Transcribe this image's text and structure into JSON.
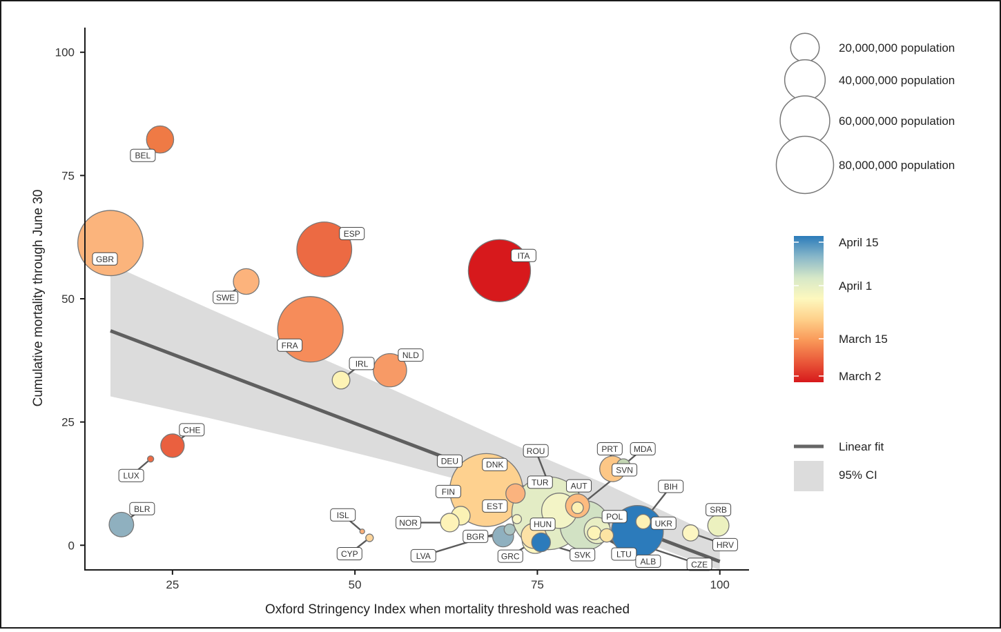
{
  "chart_data": {
    "type": "scatter",
    "xlabel": "Oxford Stringency Index when mortality threshold was reached",
    "ylabel": "Cumulative mortality through June 30",
    "xlim": [
      13,
      104
    ],
    "ylim": [
      -5,
      105
    ],
    "xticks": [
      25,
      50,
      75,
      100
    ],
    "yticks": [
      0,
      25,
      50,
      75,
      100
    ],
    "grid": false,
    "fit": {
      "name": "Linear fit",
      "x": [
        16.5,
        100
      ],
      "y": [
        43.5,
        -3.3
      ],
      "ci_name": "95% CI",
      "ci_x": [
        16.5,
        30,
        45,
        55,
        65,
        75,
        85,
        95,
        100
      ],
      "ci_lower": [
        30.2,
        25.8,
        20.6,
        16.9,
        13.0,
        8.6,
        3.4,
        -2.4,
        -5.0
      ],
      "ci_upper": [
        57.0,
        48.0,
        38.2,
        31.7,
        25.0,
        18.3,
        12.0,
        5.0,
        1.6
      ]
    },
    "size_legend": [
      {
        "label": "20,000,000 population",
        "population": 20000000
      },
      {
        "label": "40,000,000 population",
        "population": 40000000
      },
      {
        "label": "60,000,000 population",
        "population": 60000000
      },
      {
        "label": "80,000,000 population",
        "population": 80000000
      }
    ],
    "color_legend": {
      "ticks": [
        "April 15",
        "April 1",
        "March 15",
        "March 2"
      ],
      "stops": [
        "#2b7bba",
        "#89b7c9",
        "#d6e8c8",
        "#fdf8be",
        "#fed08a",
        "#f99858",
        "#ea5a3a",
        "#d7191c"
      ]
    },
    "points": [
      {
        "code": "BEL",
        "x": 23.3,
        "y": 82.3,
        "pop": 11500000,
        "color": "#ef7a45",
        "lx": -25,
        "ly": 23
      },
      {
        "code": "GBR",
        "x": 16.5,
        "y": 61.3,
        "pop": 66500000,
        "color": "#fbb47c",
        "lx": -8,
        "ly": 23
      },
      {
        "code": "ESP",
        "x": 45.8,
        "y": 60.0,
        "pop": 47000000,
        "color": "#ec6a43",
        "lx": 40,
        "ly": -23
      },
      {
        "code": "ITA",
        "x": 69.8,
        "y": 55.7,
        "pop": 60300000,
        "color": "#d7191c",
        "lx": 35,
        "ly": -22
      },
      {
        "code": "SWE",
        "x": 35.1,
        "y": 53.5,
        "pop": 10300000,
        "color": "#fcb37c",
        "lx": -30,
        "ly": 23
      },
      {
        "code": "FRA",
        "x": 43.9,
        "y": 43.8,
        "pop": 67000000,
        "color": "#f68c5a",
        "lx": -30,
        "ly": 23
      },
      {
        "code": "NLD",
        "x": 54.8,
        "y": 35.5,
        "pop": 17300000,
        "color": "#f79a66",
        "lx": 30,
        "ly": -22
      },
      {
        "code": "IRL",
        "x": 48.1,
        "y": 33.5,
        "pop": 4900000,
        "color": "#fdf3b5",
        "lx": 30,
        "ly": -24
      },
      {
        "code": "CHE",
        "x": 25.0,
        "y": 20.2,
        "pop": 8600000,
        "color": "#ea603f",
        "lx": 28,
        "ly": -23
      },
      {
        "code": "LUX",
        "x": 22.0,
        "y": 17.5,
        "pop": 600000,
        "color": "#ee6b44",
        "lx": -28,
        "ly": 24
      },
      {
        "code": "BLR",
        "x": 18.0,
        "y": 4.2,
        "pop": 9400000,
        "color": "#8fb0bf",
        "lx": 30,
        "ly": -23
      },
      {
        "code": "ISL",
        "x": 51.0,
        "y": 2.8,
        "pop": 360000,
        "color": "#fbb07a",
        "lx": -28,
        "ly": -24
      },
      {
        "code": "CYP",
        "x": 52.0,
        "y": 1.5,
        "pop": 900000,
        "color": "#fdd49a",
        "lx": -29,
        "ly": 23
      },
      {
        "code": "DEU",
        "x": 68.0,
        "y": 11.2,
        "pop": 83000000,
        "color": "#fed18f",
        "lx": -53,
        "ly": -42
      },
      {
        "code": "DNK",
        "x": 72.0,
        "y": 10.5,
        "pop": 5800000,
        "color": "#fbb37e",
        "lx": -30,
        "ly": -42
      },
      {
        "code": "ROU",
        "x": 78.0,
        "y": 7.0,
        "pop": 19400000,
        "color": "#f3f4c6",
        "lx": -34,
        "ly": -87
      },
      {
        "code": "PRT",
        "x": 85.3,
        "y": 15.5,
        "pop": 10300000,
        "color": "#fdc786",
        "lx": -4,
        "ly": -29
      },
      {
        "code": "MDA",
        "x": 86.8,
        "y": 16.2,
        "pop": 2700000,
        "color": "#c3d6b3",
        "lx": 28,
        "ly": -24
      },
      {
        "code": "FIN",
        "x": 64.5,
        "y": 6.0,
        "pop": 5500000,
        "color": "#fbf2b5",
        "lx": -18,
        "ly": -35
      },
      {
        "code": "EST",
        "x": 72.2,
        "y": 5.3,
        "pop": 1300000,
        "color": "#f6f4c4",
        "lx": -32,
        "ly": -19
      },
      {
        "code": "TUR",
        "x": 76.5,
        "y": 6.5,
        "pop": 83000000,
        "color": "#e3ecc5",
        "lx": -12,
        "ly": -45
      },
      {
        "code": "AUT",
        "x": 80.5,
        "y": 8.0,
        "pop": 8900000,
        "color": "#fdbb7f",
        "lx": 2,
        "ly": -29
      },
      {
        "code": "SVN",
        "x": 80.5,
        "y": 7.6,
        "pop": 2100000,
        "color": "#fdf1b4",
        "lx": 68,
        "ly": -55
      },
      {
        "code": "NOR",
        "x": 63.0,
        "y": 4.6,
        "pop": 5400000,
        "color": "#fef3b8",
        "lx": -60,
        "ly": 0
      },
      {
        "code": "POL",
        "x": 81.5,
        "y": 4.0,
        "pop": 38000000,
        "color": "#d2e2c4",
        "lx": 43,
        "ly": -13
      },
      {
        "code": "BIH",
        "x": 89.5,
        "y": 4.8,
        "pop": 3300000,
        "color": "#fdf1b5",
        "lx": 40,
        "ly": -51
      },
      {
        "code": "UKR",
        "x": 88.7,
        "y": 2.8,
        "pop": 42000000,
        "color": "#2c7bbb",
        "lx": 38,
        "ly": -12
      },
      {
        "code": "SRB",
        "x": 99.8,
        "y": 4.0,
        "pop": 7000000,
        "color": "#ecf1bf",
        "lx": 0,
        "ly": -23
      },
      {
        "code": "HRV",
        "x": 96.0,
        "y": 2.5,
        "pop": 4100000,
        "color": "#fdf6c2",
        "lx": 50,
        "ly": 17
      },
      {
        "code": "LTU",
        "x": 84.5,
        "y": 2.0,
        "pop": 2800000,
        "color": "#fde3a3",
        "lx": 25,
        "ly": 27
      },
      {
        "code": "ALB",
        "x": 82.8,
        "y": 2.5,
        "pop": 2900000,
        "color": "#fdf4b7",
        "lx": 78,
        "ly": 41
      },
      {
        "code": "CZE",
        "x": 83.2,
        "y": 3.0,
        "pop": 10700000,
        "color": "#e9eec4",
        "lx": 148,
        "ly": 49
      },
      {
        "code": "SVK",
        "x": 75.5,
        "y": 0.6,
        "pop": 5500000,
        "color": "#2c7bbb",
        "lx": 60,
        "ly": 18
      },
      {
        "code": "HUN",
        "x": 74.5,
        "y": 1.9,
        "pop": 9800000,
        "color": "#fde2a6",
        "lx": 13,
        "ly": -17
      },
      {
        "code": "GRC",
        "x": 74.7,
        "y": 1.0,
        "pop": 10700000,
        "color": "#fdf6c0",
        "lx": -36,
        "ly": 23
      },
      {
        "code": "BGR",
        "x": 70.3,
        "y": 1.8,
        "pop": 6900000,
        "color": "#8fb0bf",
        "lx": -40,
        "ly": 0
      },
      {
        "code": "LVA",
        "x": 71.2,
        "y": 3.2,
        "pop": 1900000,
        "color": "#a9c3c1",
        "lx": -125,
        "ly": 38
      }
    ]
  }
}
